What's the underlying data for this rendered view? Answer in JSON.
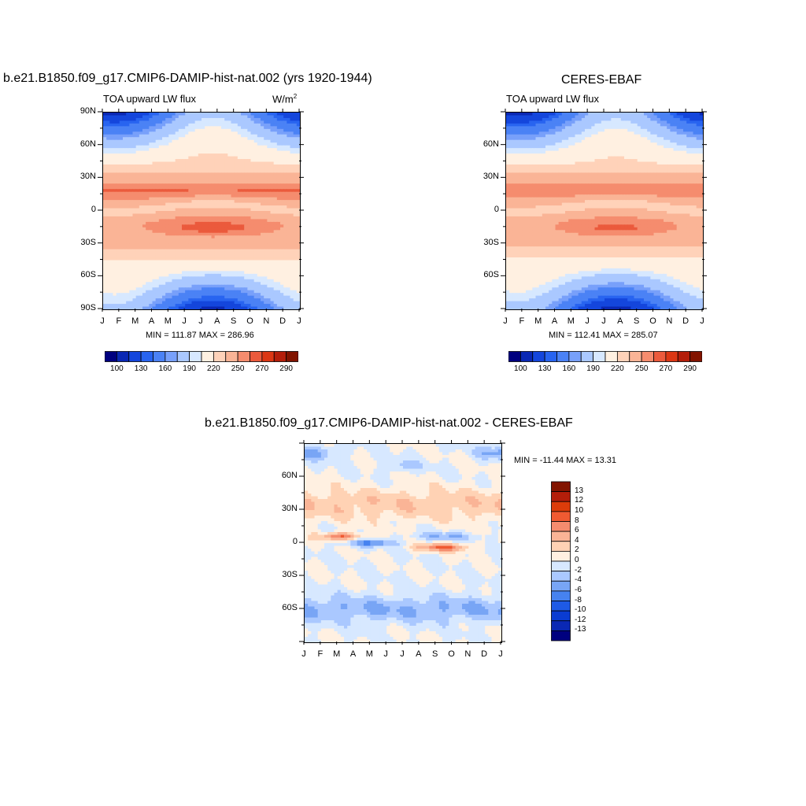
{
  "panel1": {
    "title": "b.e21.B1850.f09_g17.CMIP6-DAMIP-hist-nat.002 (yrs 1920-1944)",
    "subtitle": "TOA upward LW flux",
    "units_base": "W/m",
    "units_exp": "2",
    "minmax": "MIN = 111.87 MAX = 286.96",
    "yticks": [
      "90N",
      "60N",
      "30N",
      "0",
      "30S",
      "60S",
      "90S"
    ],
    "xticks": [
      "J",
      "F",
      "M",
      "A",
      "M",
      "J",
      "J",
      "A",
      "S",
      "O",
      "N",
      "D",
      "J"
    ],
    "colorbar_labels": [
      "100",
      "130",
      "160",
      "190",
      "220",
      "250",
      "270",
      "290"
    ]
  },
  "panel2": {
    "title": "CERES-EBAF",
    "subtitle": "TOA upward LW flux",
    "minmax": "MIN = 112.41 MAX = 285.07",
    "yticks": [
      "60N",
      "30N",
      "0",
      "30S",
      "60S"
    ],
    "xticks": [
      "J",
      "F",
      "M",
      "A",
      "M",
      "J",
      "J",
      "A",
      "S",
      "O",
      "N",
      "D",
      "J"
    ],
    "colorbar_labels": [
      "100",
      "130",
      "160",
      "190",
      "220",
      "250",
      "270",
      "290"
    ]
  },
  "panel3": {
    "title": "b.e21.B1850.f09_g17.CMIP6-DAMIP-hist-nat.002 - CERES-EBAF",
    "minmax": "MIN = -11.44 MAX =  13.31",
    "yticks": [
      "60N",
      "30N",
      "0",
      "30S",
      "60S"
    ],
    "xticks": [
      "J",
      "F",
      "M",
      "A",
      "M",
      "J",
      "J",
      "A",
      "S",
      "O",
      "N",
      "D",
      "J"
    ],
    "colorbar_labels": [
      "13",
      "12",
      "10",
      "8",
      "6",
      "4",
      "2",
      "0",
      "-2",
      "-4",
      "-6",
      "-8",
      "-10",
      "-12",
      "-13"
    ]
  },
  "colors": {
    "abs_palette": [
      "#00007f",
      "#0a28b4",
      "#1446dc",
      "#2864f0",
      "#4b82f5",
      "#78a0fa",
      "#aac8ff",
      "#d7e8ff",
      "#fff0e1",
      "#ffd2b9",
      "#fab496",
      "#f58c6e",
      "#eb5a3c",
      "#dc3714",
      "#b41e0a",
      "#821400"
    ],
    "diff_palette": [
      "#00007f",
      "#0a28b4",
      "#0a3cd2",
      "#1e5ae6",
      "#4682f0",
      "#78a5f5",
      "#aac8ff",
      "#d7e8ff",
      "#fff0e1",
      "#ffd2b4",
      "#fab496",
      "#f58c6e",
      "#f05a32",
      "#dc3c0a",
      "#b41e0a",
      "#821400"
    ]
  },
  "chart_data": [
    {
      "type": "heatmap",
      "title": "b.e21.B1850.f09_g17.CMIP6-DAMIP-hist-nat.002 (yrs 1920-1944)",
      "subtitle": "TOA upward LW flux",
      "units": "W/m2",
      "x": [
        "J",
        "F",
        "M",
        "A",
        "M",
        "J",
        "J",
        "A",
        "S",
        "O",
        "N",
        "D",
        "J"
      ],
      "y_range": [
        -90,
        90
      ],
      "min": 111.87,
      "max": 286.96,
      "levels": [
        100,
        110,
        130,
        140,
        160,
        170,
        190,
        200,
        220,
        230,
        250,
        260,
        270,
        280,
        290
      ],
      "colorbar_labels": [
        100,
        130,
        160,
        190,
        220,
        250,
        270,
        290
      ]
    },
    {
      "type": "heatmap",
      "title": "CERES-EBAF",
      "subtitle": "TOA upward LW flux",
      "x": [
        "J",
        "F",
        "M",
        "A",
        "M",
        "J",
        "J",
        "A",
        "S",
        "O",
        "N",
        "D",
        "J"
      ],
      "y_range": [
        -90,
        90
      ],
      "min": 112.41,
      "max": 285.07,
      "levels": [
        100,
        110,
        130,
        140,
        160,
        170,
        190,
        200,
        220,
        230,
        250,
        260,
        270,
        280,
        290
      ],
      "colorbar_labels": [
        100,
        130,
        160,
        190,
        220,
        250,
        270,
        290
      ]
    },
    {
      "type": "heatmap",
      "title": "b.e21.B1850.f09_g17.CMIP6-DAMIP-hist-nat.002 - CERES-EBAF",
      "x": [
        "J",
        "F",
        "M",
        "A",
        "M",
        "J",
        "J",
        "A",
        "S",
        "O",
        "N",
        "D",
        "J"
      ],
      "y_range": [
        -90,
        90
      ],
      "min": -11.44,
      "max": 13.31,
      "levels": [
        -13,
        -12,
        -10,
        -8,
        -6,
        -4,
        -2,
        0,
        2,
        4,
        6,
        8,
        10,
        12,
        13
      ],
      "colorbar_labels": [
        13,
        12,
        10,
        8,
        6,
        4,
        2,
        0,
        -2,
        -4,
        -6,
        -8,
        -10,
        -12,
        -13
      ]
    }
  ]
}
